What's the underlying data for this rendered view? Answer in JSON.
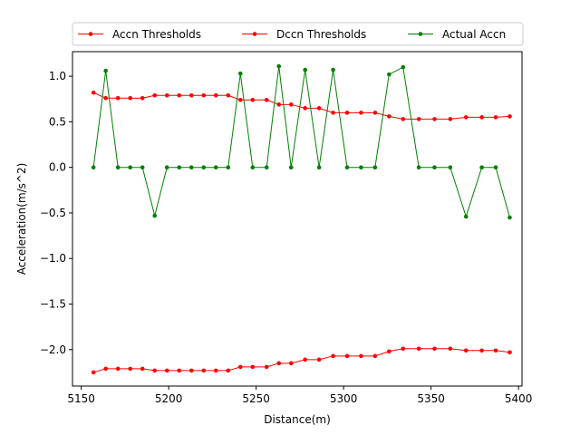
{
  "chart_data": {
    "type": "line",
    "title": "",
    "xlabel": "Distance(m)",
    "ylabel": "Acceleration(m/s^2)",
    "xlim": [
      5145,
      5402
    ],
    "ylim": [
      -2.4,
      1.27
    ],
    "xticks": [
      5150,
      5200,
      5250,
      5300,
      5350,
      5400
    ],
    "xtick_labels": [
      "5150",
      "5200",
      "5250",
      "5300",
      "5350",
      "5400"
    ],
    "yticks": [
      -2.0,
      -1.5,
      -1.0,
      -0.5,
      0.0,
      0.5,
      1.0
    ],
    "ytick_labels": [
      "−2.0",
      "−1.5",
      "−1.0",
      "−0.5",
      "0.0",
      "0.5",
      "1.0"
    ],
    "grid": false,
    "legend_position": "top",
    "series": [
      {
        "name": "Accn Thresholds",
        "color": "#ff0000",
        "points": [
          [
            5157,
            0.82
          ],
          [
            5164,
            0.76
          ],
          [
            5171,
            0.76
          ],
          [
            5178,
            0.76
          ],
          [
            5185,
            0.76
          ],
          [
            5192,
            0.79
          ],
          [
            5199,
            0.79
          ],
          [
            5206,
            0.79
          ],
          [
            5213,
            0.79
          ],
          [
            5220,
            0.79
          ],
          [
            5227,
            0.79
          ],
          [
            5234,
            0.79
          ],
          [
            5241,
            0.74
          ],
          [
            5248,
            0.74
          ],
          [
            5256,
            0.74
          ],
          [
            5263,
            0.69
          ],
          [
            5270,
            0.69
          ],
          [
            5278,
            0.65
          ],
          [
            5286,
            0.65
          ],
          [
            5294,
            0.6
          ],
          [
            5302,
            0.6
          ],
          [
            5310,
            0.6
          ],
          [
            5318,
            0.6
          ],
          [
            5326,
            0.56
          ],
          [
            5334,
            0.53
          ],
          [
            5343,
            0.53
          ],
          [
            5352,
            0.53
          ],
          [
            5361,
            0.53
          ],
          [
            5370,
            0.55
          ],
          [
            5379,
            0.55
          ],
          [
            5387,
            0.55
          ],
          [
            5395,
            0.56
          ]
        ]
      },
      {
        "name": "Dccn Thresholds",
        "color": "#ff0000",
        "points": [
          [
            5157,
            -2.25
          ],
          [
            5164,
            -2.21
          ],
          [
            5171,
            -2.21
          ],
          [
            5178,
            -2.21
          ],
          [
            5185,
            -2.21
          ],
          [
            5192,
            -2.23
          ],
          [
            5199,
            -2.23
          ],
          [
            5206,
            -2.23
          ],
          [
            5213,
            -2.23
          ],
          [
            5220,
            -2.23
          ],
          [
            5227,
            -2.23
          ],
          [
            5234,
            -2.23
          ],
          [
            5241,
            -2.19
          ],
          [
            5248,
            -2.19
          ],
          [
            5256,
            -2.19
          ],
          [
            5263,
            -2.15
          ],
          [
            5270,
            -2.15
          ],
          [
            5278,
            -2.11
          ],
          [
            5286,
            -2.11
          ],
          [
            5294,
            -2.07
          ],
          [
            5302,
            -2.07
          ],
          [
            5310,
            -2.07
          ],
          [
            5318,
            -2.07
          ],
          [
            5326,
            -2.02
          ],
          [
            5334,
            -1.99
          ],
          [
            5343,
            -1.99
          ],
          [
            5352,
            -1.99
          ],
          [
            5361,
            -1.99
          ],
          [
            5370,
            -2.01
          ],
          [
            5379,
            -2.01
          ],
          [
            5387,
            -2.01
          ],
          [
            5395,
            -2.03
          ]
        ]
      },
      {
        "name": "Actual Accn",
        "color": "#008000",
        "points": [
          [
            5157,
            0.0
          ],
          [
            5164,
            1.06
          ],
          [
            5171,
            0.0
          ],
          [
            5178,
            0.0
          ],
          [
            5185,
            0.0
          ],
          [
            5192,
            -0.53
          ],
          [
            5199,
            0.0
          ],
          [
            5206,
            0.0
          ],
          [
            5213,
            0.0
          ],
          [
            5220,
            0.0
          ],
          [
            5227,
            0.0
          ],
          [
            5234,
            0.0
          ],
          [
            5241,
            1.03
          ],
          [
            5248,
            0.0
          ],
          [
            5256,
            0.0
          ],
          [
            5263,
            1.11
          ],
          [
            5270,
            0.0
          ],
          [
            5278,
            1.07
          ],
          [
            5286,
            0.0
          ],
          [
            5294,
            1.07
          ],
          [
            5302,
            0.0
          ],
          [
            5310,
            0.0
          ],
          [
            5318,
            0.0
          ],
          [
            5326,
            1.02
          ],
          [
            5334,
            1.1
          ],
          [
            5343,
            0.0
          ],
          [
            5352,
            0.0
          ],
          [
            5361,
            0.0
          ],
          [
            5370,
            -0.54
          ],
          [
            5379,
            0.0
          ],
          [
            5387,
            0.0
          ],
          [
            5395,
            -0.55
          ]
        ]
      }
    ]
  }
}
